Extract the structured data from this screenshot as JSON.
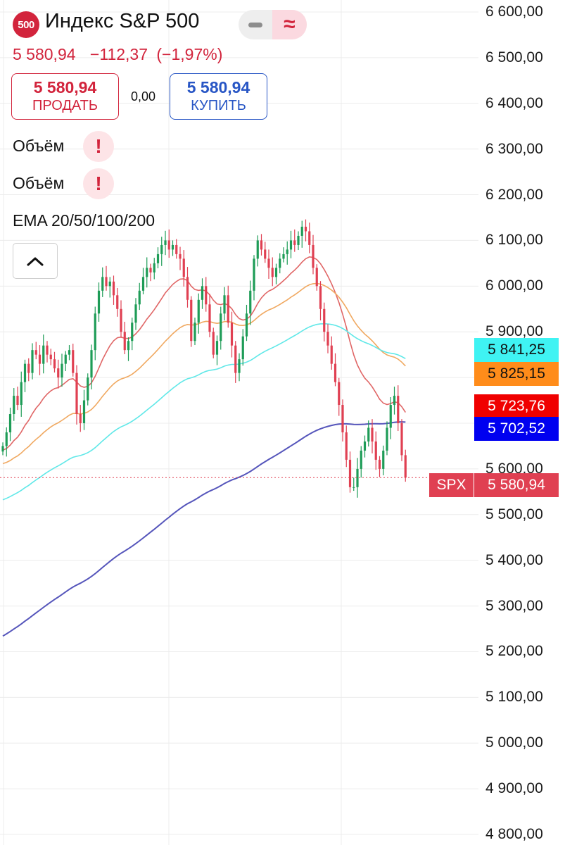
{
  "header": {
    "symbol_badge": "500",
    "title": "Индекс S&P 500",
    "mode_icons": [
      "minus-icon",
      "approx-icon"
    ],
    "price": "5 580,94",
    "change": "−112,37",
    "change_pct": "(−1,97%)"
  },
  "trade": {
    "sell_price": "5 580,94",
    "sell_label": "ПРОДАТЬ",
    "spread": "0,00",
    "buy_price": "5 580,94",
    "buy_label": "КУПИТЬ"
  },
  "indicators": [
    {
      "label": "Объём",
      "alert": "!"
    },
    {
      "label": "Объём",
      "alert": "!"
    },
    {
      "label": "EMA 20/50/100/200"
    }
  ],
  "axis": {
    "ticks": [
      "6 600,00",
      "6 500,00",
      "6 400,00",
      "6 300,00",
      "6 200,00",
      "6 100,00",
      "6 000,00",
      "5 900,00",
      "5 800,00",
      "5 700,00",
      "5 600,00",
      "5 500,00",
      "5 400,00",
      "5 300,00",
      "5 200,00",
      "5 100,00",
      "5 000,00",
      "4 900,00",
      "4 800,00"
    ]
  },
  "tags": [
    {
      "label": "5 841,25",
      "color": "#3ff3f3"
    },
    {
      "label": "5 825,15",
      "color": "#ff8c1a"
    },
    {
      "label": "5 723,76",
      "color": "#f00000",
      "text_color": "#ffffff"
    },
    {
      "label": "5 702,52",
      "color": "#0000f0",
      "text_color": "#ffffff"
    }
  ],
  "last_price": {
    "symbol": "SPX",
    "value": "5 580,94",
    "color": "#e04052"
  },
  "colors": {
    "up": "#1e9c57",
    "down": "#e04052",
    "accent": "#d2243c",
    "buy": "#2856c5",
    "ema20": "#e06666",
    "ema50": "#f0a860",
    "ema100": "#60e8e8",
    "ema200": "#5555bb"
  },
  "chart_data": {
    "type": "candlestick",
    "ylim": [
      4780,
      6620
    ],
    "close": [
      5650,
      5680,
      5720,
      5760,
      5740,
      5790,
      5830,
      5810,
      5860,
      5850,
      5830,
      5870,
      5850,
      5840,
      5820,
      5800,
      5830,
      5850,
      5860,
      5810,
      5720,
      5700,
      5750,
      5800,
      5860,
      5940,
      5990,
      6020,
      6000,
      6010,
      5980,
      5950,
      5900,
      5860,
      5880,
      5920,
      5960,
      5990,
      6020,
      6040,
      6030,
      6050,
      6070,
      6090,
      6100,
      6080,
      6090,
      6070,
      6060,
      6020,
      5970,
      5880,
      5920,
      5970,
      6000,
      5960,
      5900,
      5850,
      5880,
      5940,
      5980,
      5920,
      5870,
      5810,
      5840,
      5890,
      5940,
      5990,
      6060,
      6100,
      6080,
      6060,
      6040,
      6020,
      6040,
      6060,
      6070,
      6080,
      6100,
      6090,
      6110,
      6130,
      6120,
      6090,
      6040,
      6000,
      5950,
      5900,
      5870,
      5830,
      5790,
      5740,
      5680,
      5620,
      5560,
      5560,
      5600,
      5640,
      5660,
      5690,
      5660,
      5620,
      5600,
      5640,
      5690,
      5740,
      5760,
      5700,
      5630,
      5581
    ],
    "ema": {
      "periods": [
        20,
        50,
        100,
        200
      ],
      "last": [
        5723.76,
        5825.15,
        5841.25,
        5702.52
      ]
    }
  }
}
